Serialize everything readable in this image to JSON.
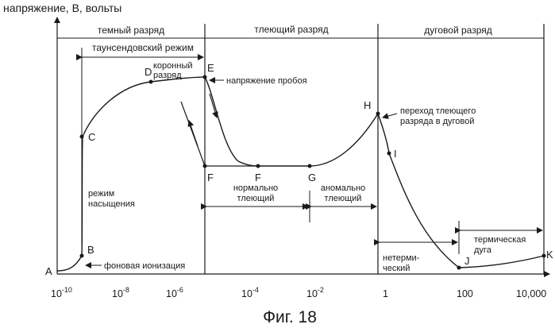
{
  "y_axis_label": "напряжение, В, вольты",
  "regions": {
    "dark": "темный разряд",
    "glow": "тлеющий разряд",
    "arc": "дуговой разряд"
  },
  "x_ticks": [
    {
      "base": "10",
      "exp": "-10"
    },
    {
      "base": "10",
      "exp": "-8"
    },
    {
      "base": "10",
      "exp": "-6"
    },
    {
      "base": "10",
      "exp": "-4"
    },
    {
      "base": "10",
      "exp": "-2"
    },
    {
      "base": "1",
      "exp": ""
    },
    {
      "base": "100",
      "exp": ""
    },
    {
      "base": "10,000",
      "exp": ""
    }
  ],
  "points": [
    "A",
    "B",
    "C",
    "D",
    "E",
    "F",
    "F",
    "G",
    "H",
    "I",
    "J",
    "K"
  ],
  "annotations": {
    "townsend": "таунсендовский режим",
    "corona_1": "коронный",
    "corona_2": "разряд",
    "breakdown": "напряжение пробоя",
    "saturation_1": "режим",
    "saturation_2": "насыщения",
    "background": "фоновая ионизация",
    "normal_1": "нормально",
    "normal_2": "тлеющий",
    "abnormal_1": "аномально",
    "abnormal_2": "тлеющий",
    "transition_1": "переход тлеющего",
    "transition_2": "разряда в дуговой",
    "nonthermal_1": "нетерми-",
    "nonthermal_2": "ческий",
    "thermal_1": "термическая",
    "thermal_2": "дуга"
  },
  "caption": "Фиг. 18",
  "colors": {
    "ink": "#1a1a1a",
    "background": "#ffffff"
  }
}
